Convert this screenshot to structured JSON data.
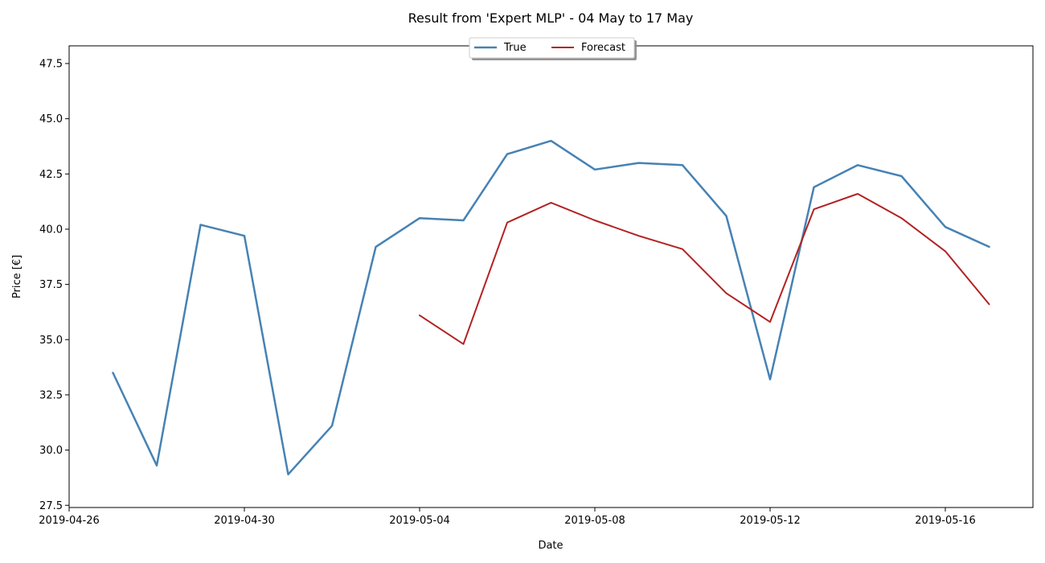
{
  "chart_data": {
    "type": "line",
    "title": "Result from 'Expert MLP' - 04 May to 17 May",
    "xlabel": "Date",
    "ylabel": "Price [€]",
    "xlim": [
      "2019-04-26",
      "2019-05-18"
    ],
    "ylim": [
      27.4,
      48.3
    ],
    "x_ticks": [
      "2019-04-26",
      "2019-04-30",
      "2019-05-04",
      "2019-05-08",
      "2019-05-12",
      "2019-05-16"
    ],
    "y_ticks": [
      27.5,
      30.0,
      32.5,
      35.0,
      37.5,
      40.0,
      42.5,
      45.0,
      47.5
    ],
    "y_tick_labels": [
      "27.5",
      "30.0",
      "32.5",
      "35.0",
      "37.5",
      "40.0",
      "42.5",
      "45.0",
      "47.5"
    ],
    "grid": false,
    "legend": {
      "placement": "top-center",
      "entries": [
        "True",
        "Forecast"
      ]
    },
    "series": [
      {
        "name": "True",
        "color": "#4682b4",
        "x": [
          "2019-04-27",
          "2019-04-28",
          "2019-04-29",
          "2019-04-30",
          "2019-05-01",
          "2019-05-02",
          "2019-05-03",
          "2019-05-04",
          "2019-05-05",
          "2019-05-06",
          "2019-05-07",
          "2019-05-08",
          "2019-05-09",
          "2019-05-10",
          "2019-05-11",
          "2019-05-12",
          "2019-05-13",
          "2019-05-14",
          "2019-05-15",
          "2019-05-16",
          "2019-05-17"
        ],
        "values": [
          33.5,
          29.3,
          40.2,
          39.7,
          28.9,
          31.1,
          39.2,
          40.5,
          40.4,
          43.4,
          44.0,
          42.7,
          43.0,
          42.9,
          40.6,
          33.2,
          41.9,
          42.9,
          42.4,
          40.1,
          39.2
        ]
      },
      {
        "name": "Forecast",
        "color": "#b22222",
        "x": [
          "2019-05-04",
          "2019-05-05",
          "2019-05-06",
          "2019-05-07",
          "2019-05-08",
          "2019-05-09",
          "2019-05-10",
          "2019-05-11",
          "2019-05-12",
          "2019-05-13",
          "2019-05-14",
          "2019-05-15",
          "2019-05-16",
          "2019-05-17"
        ],
        "values": [
          36.1,
          34.8,
          40.3,
          41.2,
          40.4,
          39.7,
          39.1,
          37.1,
          35.8,
          40.9,
          41.6,
          40.5,
          39.0,
          36.6
        ]
      }
    ]
  }
}
